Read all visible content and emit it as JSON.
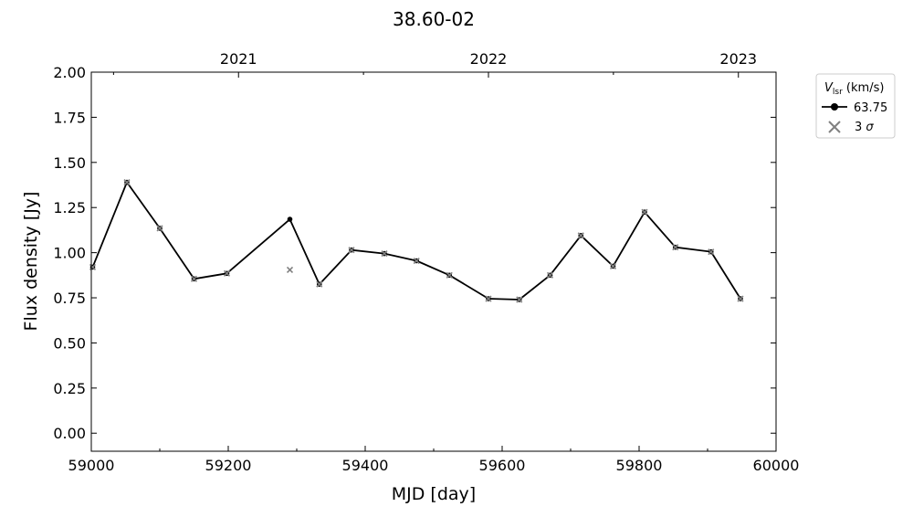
{
  "chart_data": {
    "type": "line",
    "title": "38.60-02",
    "xlabel": "MJD [day]",
    "ylabel": "Flux density [Jy]",
    "xlim": [
      59000,
      60000
    ],
    "ylim": [
      -0.1,
      2.0
    ],
    "xticks": [
      59000,
      59200,
      59400,
      59600,
      59800,
      60000
    ],
    "yticks": [
      0.0,
      0.25,
      0.5,
      0.75,
      1.0,
      1.25,
      1.5,
      1.75,
      2.0
    ],
    "top_axis": {
      "ticks": [
        {
          "label": "2021",
          "mjd": 59215
        },
        {
          "label": "2022",
          "mjd": 59580
        },
        {
          "label": "2023",
          "mjd": 59945
        }
      ]
    },
    "legend": {
      "title": "V_lsr (km/s)",
      "title_symbol": "V",
      "title_subscript": "lsr",
      "title_rest": " (km/s)",
      "position": "outside upper-right",
      "entries": [
        {
          "label": "63.75",
          "marker": "circle-line",
          "color": "#000000"
        },
        {
          "label": "3 σ",
          "label_number": "3 ",
          "label_symbol": "σ",
          "marker": "x",
          "color": "#808080"
        }
      ]
    },
    "series": [
      {
        "name": "63.75",
        "color": "#000000",
        "x": [
          59002,
          59052,
          59100,
          59150,
          59198,
          59290,
          59333,
          59380,
          59428,
          59475,
          59523,
          59580,
          59625,
          59670,
          59715,
          59762,
          59808,
          59853,
          59905,
          59948
        ],
        "y": [
          0.92,
          1.39,
          1.135,
          0.855,
          0.885,
          1.185,
          0.825,
          1.015,
          0.995,
          0.955,
          0.875,
          0.745,
          0.74,
          0.875,
          1.095,
          0.925,
          1.225,
          1.03,
          1.005,
          0.745
        ]
      }
    ],
    "sigma3": {
      "name": "3 σ",
      "color": "#808080",
      "x": [
        59002,
        59052,
        59100,
        59150,
        59198,
        59290,
        59333,
        59380,
        59428,
        59475,
        59523,
        59580,
        59625,
        59670,
        59715,
        59762,
        59808,
        59853,
        59905,
        59948
      ],
      "y": [
        0.92,
        1.39,
        1.135,
        0.855,
        0.885,
        0.905,
        0.825,
        1.015,
        0.995,
        0.955,
        0.875,
        0.745,
        0.74,
        0.875,
        1.095,
        0.925,
        1.225,
        1.03,
        1.005,
        0.745
      ]
    }
  }
}
